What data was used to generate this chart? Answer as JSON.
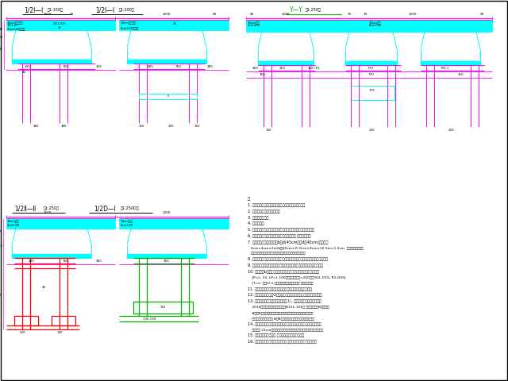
{
  "bg_color": "#ffffff",
  "magenta": "#FF00FF",
  "cyan": "#00FFFF",
  "black": "#000000",
  "red": "#FF0000",
  "green": "#00AA00",
  "fig_w": 6.4,
  "fig_h": 4.8,
  "dpi": 100
}
